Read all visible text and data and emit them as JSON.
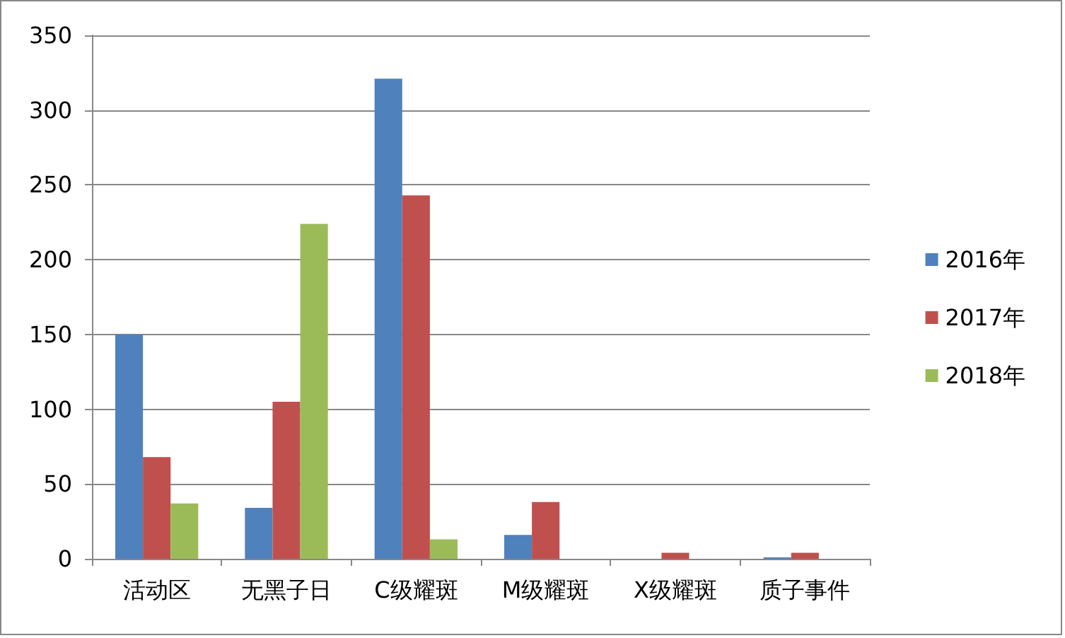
{
  "chart_data": {
    "type": "bar",
    "categories": [
      "活动区",
      "无黑子日",
      "C级耀斑",
      "M级耀斑",
      "X级耀斑",
      "质子事件"
    ],
    "series": [
      {
        "name": "2016年",
        "color": "#4f81bd",
        "values": [
          150,
          34,
          321,
          16,
          0,
          1
        ]
      },
      {
        "name": "2017年",
        "color": "#c0504d",
        "values": [
          68,
          105,
          243,
          38,
          4,
          4
        ]
      },
      {
        "name": "2018年",
        "color": "#9bbb59",
        "values": [
          37,
          224,
          13,
          0,
          0,
          0
        ]
      }
    ],
    "ylim": [
      0,
      350
    ],
    "yticks": [
      0,
      50,
      100,
      150,
      200,
      250,
      300,
      350
    ],
    "grid": "y",
    "legend": "right"
  }
}
